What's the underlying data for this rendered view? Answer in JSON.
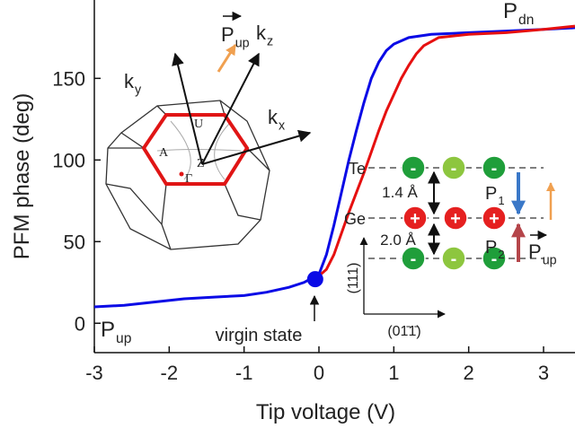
{
  "chart_data": {
    "type": "line",
    "x_label": "Tip voltage (V)",
    "y_label": "PFM phase (deg)",
    "xlim": [
      -3,
      3.42
    ],
    "ylim": [
      -18,
      198
    ],
    "xticks": [
      -3,
      -2,
      -1,
      0,
      1,
      2,
      3
    ],
    "yticks": [
      0,
      50,
      100,
      150
    ],
    "series": [
      {
        "color": "#0a0ae6",
        "x": [
          -3,
          -2.6,
          -2.2,
          -1.8,
          -1.4,
          -1.0,
          -0.7,
          -0.4,
          -0.2,
          0,
          0.1,
          0.2,
          0.3,
          0.4,
          0.5,
          0.6,
          0.7,
          0.8,
          0.9,
          1.0,
          1.2,
          1.5,
          2.0,
          2.5,
          3.0,
          3.42
        ],
        "values": [
          10,
          11,
          13,
          15,
          16,
          17,
          19,
          22,
          25,
          30,
          42,
          60,
          80,
          100,
          118,
          135,
          150,
          160,
          167,
          171,
          175,
          177,
          178,
          179,
          180,
          181
        ]
      },
      {
        "color": "#e61010",
        "x": [
          -0.05,
          0.1,
          0.2,
          0.3,
          0.4,
          0.5,
          0.6,
          0.7,
          0.8,
          0.9,
          1.0,
          1.1,
          1.2,
          1.3,
          1.4,
          1.6,
          2.0,
          2.5,
          3.0,
          3.42
        ],
        "values": [
          27,
          33,
          42,
          55,
          68,
          80,
          92,
          105,
          118,
          130,
          140,
          150,
          158,
          165,
          170,
          175,
          177,
          178,
          180,
          182
        ]
      }
    ],
    "markers": [
      {
        "x": -0.05,
        "y": 27,
        "color": "#0a0ae6"
      }
    ],
    "annotations": [
      {
        "text": "P",
        "sub": "dn"
      },
      {
        "text": "P",
        "sub": "up"
      },
      {
        "text": "virgin state"
      }
    ]
  },
  "insets": {
    "brillouin": {
      "kx": {
        "text": "k",
        "sub": "x"
      },
      "ky": {
        "text": "k",
        "sub": "y"
      },
      "kz": {
        "text": "k",
        "sub": "z"
      },
      "points": [
        "U",
        "A",
        "Z",
        "Γ"
      ],
      "p_up": {
        "text": "P",
        "sub": "up"
      }
    },
    "structure": {
      "layers": [
        "Te",
        "Ge"
      ],
      "spacings": [
        "1.4 Å",
        "2.0 Å"
      ],
      "p1": {
        "text": "P",
        "sub": "1"
      },
      "p2": {
        "text": "P",
        "sub": "2"
      },
      "p_up": {
        "text": "P",
        "sub": "up"
      },
      "directions": [
        "(111)",
        "(01̄1̄)"
      ],
      "charges": [
        "-",
        "+"
      ]
    }
  }
}
